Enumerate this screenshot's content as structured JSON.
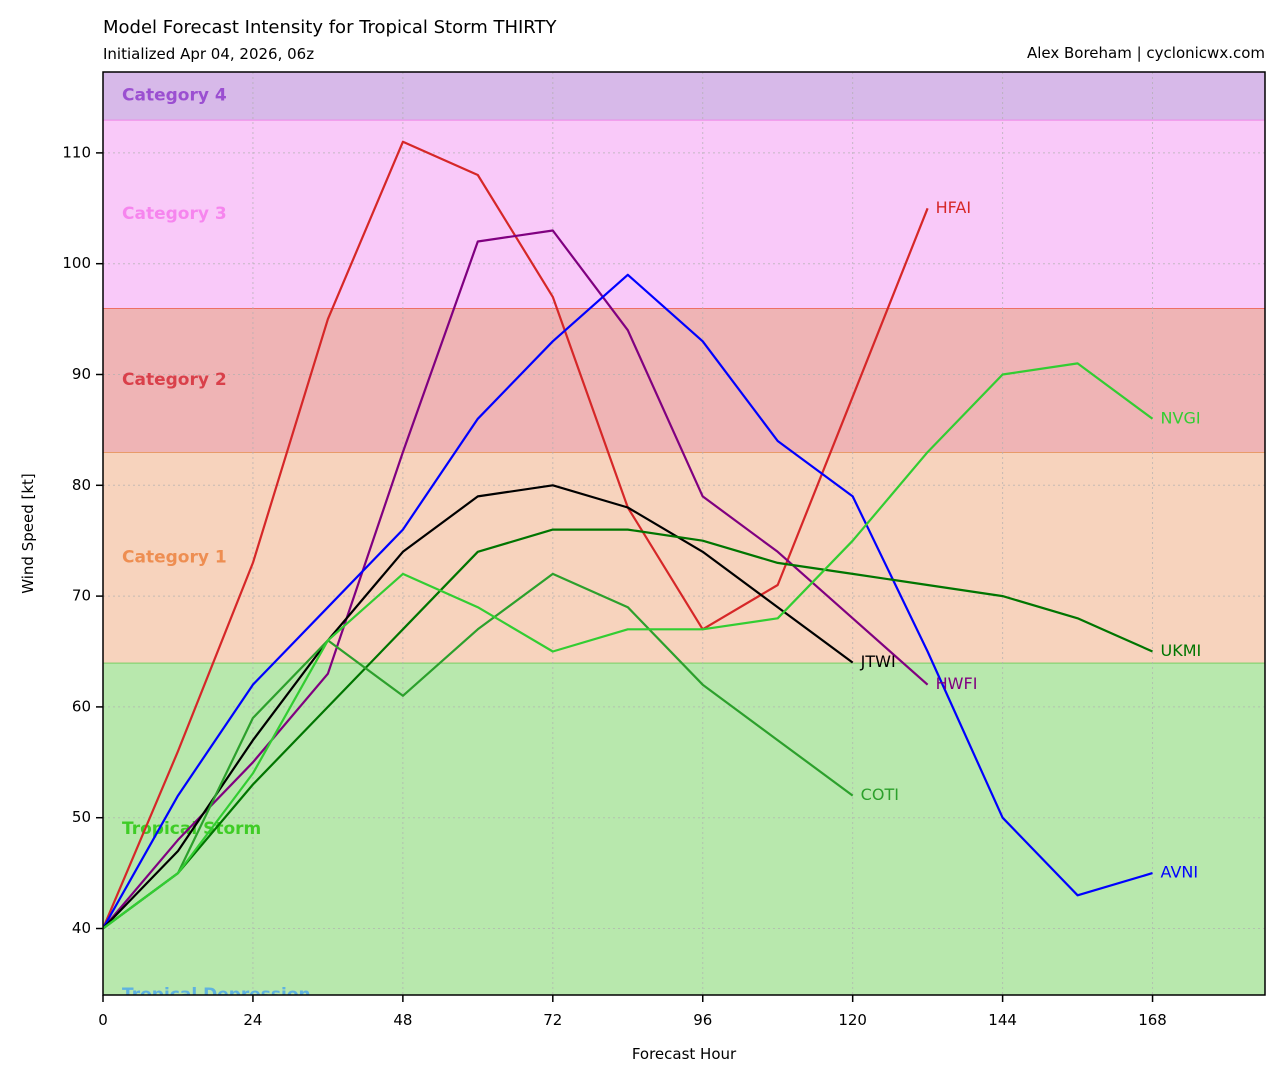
{
  "header": {
    "title": "Model Forecast Intensity for Tropical Storm THIRTY",
    "subtitle": "Initialized Apr 04, 2026, 06z",
    "credit": "Alex Boreham | cyclonicwx.com"
  },
  "chart_data": {
    "type": "line",
    "xlabel": "Forecast Hour",
    "ylabel": "Wind Speed [kt]",
    "xlim": [
      0,
      186
    ],
    "ylim": [
      34,
      117.3
    ],
    "xticks": [
      0,
      24,
      48,
      72,
      96,
      120,
      144,
      168
    ],
    "yticks": [
      40,
      50,
      60,
      70,
      80,
      90,
      100,
      110
    ],
    "grid": true,
    "bands": [
      {
        "label": "Tropical Depression",
        "from": 0,
        "to": 34,
        "fill": "#8ec7e8",
        "edge": "#5fb2e0",
        "text_color": "#5fb2e0",
        "label_y": 34
      },
      {
        "label": "Tropical Storm",
        "from": 34,
        "to": 64,
        "fill": "#b8e8ad",
        "edge": "#7ccf66",
        "text_color": "#3fcc26",
        "label_y": 49
      },
      {
        "label": "Category 1",
        "from": 64,
        "to": 83,
        "fill": "#f7d3bd",
        "edge": "#e89a66",
        "text_color": "#ee8e52",
        "label_y": 73.5
      },
      {
        "label": "Category 2",
        "from": 83,
        "to": 96,
        "fill": "#efb4b5",
        "edge": "#ee6f62",
        "text_color": "#d9404a",
        "label_y": 89.5
      },
      {
        "label": "Category 3",
        "from": 96,
        "to": 113,
        "fill": "#f9c9f9",
        "edge": "#ef86e6",
        "text_color": "#f685ee",
        "label_y": 104.5
      },
      {
        "label": "Category 4",
        "from": 113,
        "to": 117.3,
        "fill": "#d7b9e9",
        "edge": "#b77ee0",
        "text_color": "#9b4fd1",
        "label_y": 115.2
      }
    ],
    "series": [
      {
        "name": "HFAI",
        "color": "#d62728",
        "x": [
          0,
          12,
          24,
          36,
          48,
          60,
          72,
          84,
          96,
          108,
          120,
          132
        ],
        "y": [
          40,
          56,
          73,
          95,
          111,
          108,
          97,
          78,
          67,
          71,
          88,
          105
        ]
      },
      {
        "name": "HWFI",
        "color": "#800080",
        "x": [
          0,
          12,
          24,
          36,
          48,
          60,
          72,
          84,
          96,
          108,
          120,
          132
        ],
        "y": [
          40,
          48,
          55,
          63,
          83,
          102,
          103,
          94,
          79,
          74,
          68,
          62
        ]
      },
      {
        "name": "AVNI",
        "color": "#0000ff",
        "x": [
          0,
          12,
          24,
          36,
          48,
          60,
          72,
          84,
          96,
          108,
          120,
          132,
          144,
          156,
          168
        ],
        "y": [
          40,
          52,
          62,
          69,
          76,
          86,
          93,
          99,
          93,
          84,
          79,
          65,
          50,
          43,
          45
        ]
      },
      {
        "name": "JTWI",
        "color": "#000000",
        "x": [
          0,
          12,
          24,
          36,
          48,
          60,
          72,
          84,
          96,
          108,
          120
        ],
        "y": [
          40,
          47,
          57,
          66,
          74,
          79,
          80,
          78,
          74,
          69,
          64
        ]
      },
      {
        "name": "UKMI",
        "color": "#007500",
        "x": [
          0,
          12,
          24,
          36,
          48,
          60,
          72,
          84,
          96,
          108,
          120,
          132,
          144,
          156,
          168
        ],
        "y": [
          40,
          45,
          53,
          60,
          67,
          74,
          76,
          76,
          75,
          73,
          72,
          71,
          70,
          68,
          65
        ]
      },
      {
        "name": "COTI",
        "color": "#2ca02c",
        "x": [
          0,
          12,
          24,
          36,
          48,
          60,
          72,
          84,
          96,
          108,
          120
        ],
        "y": [
          40,
          45,
          59,
          66,
          61,
          67,
          72,
          69,
          62,
          57,
          52
        ]
      },
      {
        "name": "NVGI",
        "color": "#32cd32",
        "x": [
          0,
          12,
          24,
          36,
          48,
          60,
          72,
          84,
          96,
          108,
          120,
          132,
          144,
          156,
          168
        ],
        "y": [
          40,
          45,
          54,
          66,
          72,
          69,
          65,
          67,
          67,
          68,
          75,
          83,
          90,
          91,
          86
        ]
      }
    ]
  }
}
